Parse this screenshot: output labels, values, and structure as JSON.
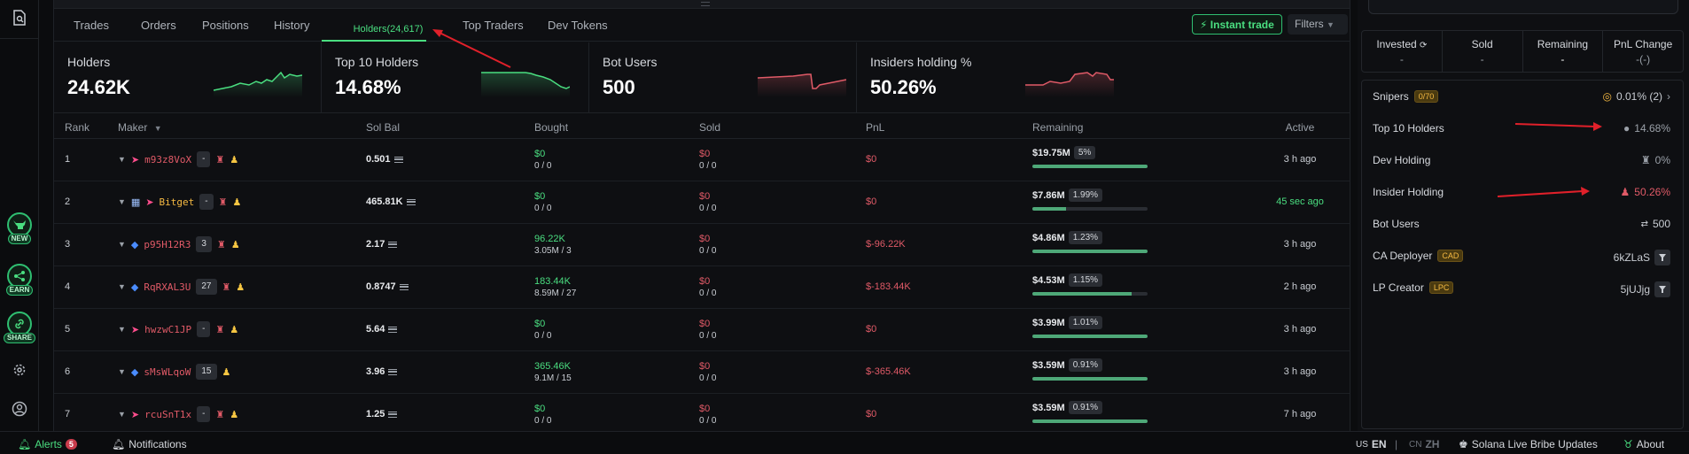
{
  "rail": {
    "buttons": [
      {
        "icon": "cow-head-icon",
        "label": "NEW"
      },
      {
        "icon": "share-nodes-icon",
        "label": "EARN"
      },
      {
        "icon": "link-icon",
        "label": "SHARE"
      }
    ]
  },
  "tabs": [
    {
      "label": "Trades"
    },
    {
      "label": "Orders"
    },
    {
      "label": "Positions"
    },
    {
      "label": "History"
    },
    {
      "label": "Holders(24,617)",
      "active": true
    },
    {
      "label": "Top Traders"
    },
    {
      "label": "Dev Tokens"
    }
  ],
  "toolbar": {
    "instant_trade": "Instant trade",
    "filters": "Filters"
  },
  "stats": [
    {
      "label": "Holders",
      "value": "24.62K",
      "trend_color": "#4ade80"
    },
    {
      "label": "Top 10 Holders",
      "value": "14.68%",
      "trend_color": "#4ade80"
    },
    {
      "label": "Bot Users",
      "value": "500",
      "trend_color": "#e05a67"
    },
    {
      "label": "Insiders holding %",
      "value": "50.26%",
      "trend_color": "#e05a67"
    }
  ],
  "table": {
    "headers": {
      "rank": "Rank",
      "maker": "Maker",
      "sol_bal": "Sol Bal",
      "bought": "Bought",
      "sold": "Sold",
      "pnl": "PnL",
      "remaining": "Remaining",
      "active": "Active"
    },
    "rows": [
      {
        "rank": "1",
        "maker": "m93z8VoX",
        "badge": "-",
        "bought": "$0",
        "bought_sub": "0 / 0",
        "sold": "$0",
        "sold_sub": "0 / 0",
        "sol_bal": "0.501",
        "pnl": "$0",
        "remaining": "$19.75M",
        "remaining_pct": "5%",
        "fill": 1.0,
        "active": "3 h ago"
      },
      {
        "rank": "2",
        "maker": "Bitget",
        "badge": "-",
        "bought": "$0",
        "bought_sub": "0 / 0",
        "sold": "$0",
        "sold_sub": "0 / 0",
        "sol_bal": "465.81K",
        "pnl": "$0",
        "remaining": "$7.86M",
        "remaining_pct": "1.99%",
        "fill": 0.29,
        "active": "45 sec ago"
      },
      {
        "rank": "3",
        "maker": "p95H12R3",
        "badge": "3",
        "bought": "96.22K",
        "bought_sub": "3.05M / 3",
        "sold": "$0",
        "sold_sub": "0 / 0",
        "sol_bal": "2.17",
        "pnl": "$-96.22K",
        "remaining": "$4.86M",
        "remaining_pct": "1.23%",
        "fill": 1.0,
        "active": "3 h ago"
      },
      {
        "rank": "4",
        "maker": "RqRXAL3U",
        "badge": "27",
        "bought": "183.44K",
        "bought_sub": "8.59M / 27",
        "sold": "$0",
        "sold_sub": "0 / 0",
        "sol_bal": "0.8747",
        "pnl": "$-183.44K",
        "remaining": "$4.53M",
        "remaining_pct": "1.15%",
        "fill": 0.86,
        "active": "2 h ago"
      },
      {
        "rank": "5",
        "maker": "hwzwC1JP",
        "badge": "-",
        "bought": "$0",
        "bought_sub": "0 / 0",
        "sold": "$0",
        "sold_sub": "0 / 0",
        "sol_bal": "5.64",
        "pnl": "$0",
        "remaining": "$3.99M",
        "remaining_pct": "1.01%",
        "fill": 1.0,
        "active": "3 h ago"
      },
      {
        "rank": "6",
        "maker": "sMsWLqoW",
        "badge": "15",
        "bought": "365.46K",
        "bought_sub": "9.1M / 15",
        "sold": "$0",
        "sold_sub": "0 / 0",
        "sol_bal": "3.96",
        "pnl": "$-365.46K",
        "remaining": "$3.59M",
        "remaining_pct": "0.91%",
        "fill": 1.0,
        "active": "3 h ago"
      },
      {
        "rank": "7",
        "maker": "rcuSnT1x",
        "badge": "-",
        "bought": "$0",
        "bought_sub": "0 / 0",
        "sold": "$0",
        "sold_sub": "0 / 0",
        "sol_bal": "1.25",
        "pnl": "$0",
        "remaining": "$3.59M",
        "remaining_pct": "0.91%",
        "fill": 1.0,
        "active": "7 h ago"
      }
    ]
  },
  "right_panel": {
    "metrics": [
      {
        "label": "Invested",
        "value": "-"
      },
      {
        "label": "Sold",
        "value": "-"
      },
      {
        "label": "Remaining",
        "value": "-"
      },
      {
        "label": "PnL Change",
        "value": "-(-)"
      }
    ],
    "items": [
      {
        "label": "Snipers",
        "badge": "0/70",
        "value": "0.01% (2)"
      },
      {
        "label": "Top 10 Holders",
        "value": "14.68%"
      },
      {
        "label": "Dev Holding",
        "value": "0%"
      },
      {
        "label": "Insider Holding",
        "value": "50.26%"
      },
      {
        "label": "Bot Users",
        "value": "500"
      },
      {
        "label": "CA Deployer",
        "badge": "CAD",
        "value": "6kZLaS"
      },
      {
        "label": "LP Creator",
        "badge": "LPC",
        "value": "5jUJjg"
      }
    ]
  },
  "status": {
    "alerts": "Alerts",
    "alerts_count": "5",
    "notifications": "Notifications",
    "lang_us": "US",
    "lang_en": "EN",
    "lang_cn": "CN",
    "lang_zh": "ZH",
    "bribe": "Solana Live Bribe Updates",
    "about": "About"
  },
  "colors": {
    "accent": "#4ade80",
    "negative": "#e05a67",
    "annotation": "#e0202a"
  }
}
